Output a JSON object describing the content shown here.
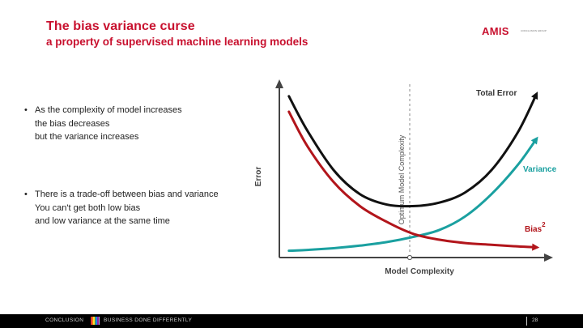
{
  "slide": {
    "title": "The bias variance curse",
    "subtitle": "a property of supervised machine learning models"
  },
  "logo": {
    "text": "AMIS",
    "tagline": "CONCLUSION GROUP"
  },
  "bullets": [
    {
      "marker": "•",
      "lines": [
        "As the complexity of model increases",
        "the bias decreases",
        "but the variance increases"
      ]
    },
    {
      "marker": "•",
      "lines": [
        "There is a trade-off between bias and variance",
        "You can't get both low bias",
        "and low variance at the same time"
      ]
    }
  ],
  "chart_data": {
    "type": "line",
    "xlabel": "Model Complexity",
    "ylabel": "Error",
    "annotation": "Optimum Model Complexity",
    "grid": false,
    "xlim": [
      0,
      10
    ],
    "ylim": [
      0,
      10
    ],
    "series": [
      {
        "name": "Total Error",
        "color": "#111111",
        "x": [
          0.3,
          1,
          2,
          3,
          4,
          5,
          6,
          7,
          8,
          9,
          9.7
        ],
        "y": [
          9.3,
          7.3,
          5.0,
          3.6,
          3.0,
          2.9,
          3.1,
          3.7,
          5.0,
          7.2,
          9.4
        ]
      },
      {
        "name": "Variance",
        "color": "#1aa0a0",
        "x": [
          0.3,
          1,
          2,
          3,
          4,
          5,
          6,
          7,
          8,
          9,
          9.7
        ],
        "y": [
          0.3,
          0.35,
          0.45,
          0.6,
          0.8,
          1.1,
          1.5,
          2.3,
          3.6,
          5.3,
          6.8
        ]
      },
      {
        "name": "Bias",
        "label_superscript": "2",
        "color": "#b2151b",
        "x": [
          0.3,
          1,
          2,
          3,
          4,
          5,
          6,
          7,
          8,
          9,
          9.7
        ],
        "y": [
          8.4,
          6.4,
          4.3,
          2.9,
          2.0,
          1.3,
          0.95,
          0.75,
          0.65,
          0.55,
          0.5
        ]
      }
    ]
  },
  "footer": {
    "left_text": "CONCLUSION",
    "right_text": "BUSINESS DONE DIFFERENTLY",
    "stripe_colors": [
      "#e53935",
      "#fb8c00",
      "#fdd835",
      "#43a047",
      "#1e88e5",
      "#8e24aa",
      "#c0c0c0"
    ],
    "page_number": "28"
  }
}
